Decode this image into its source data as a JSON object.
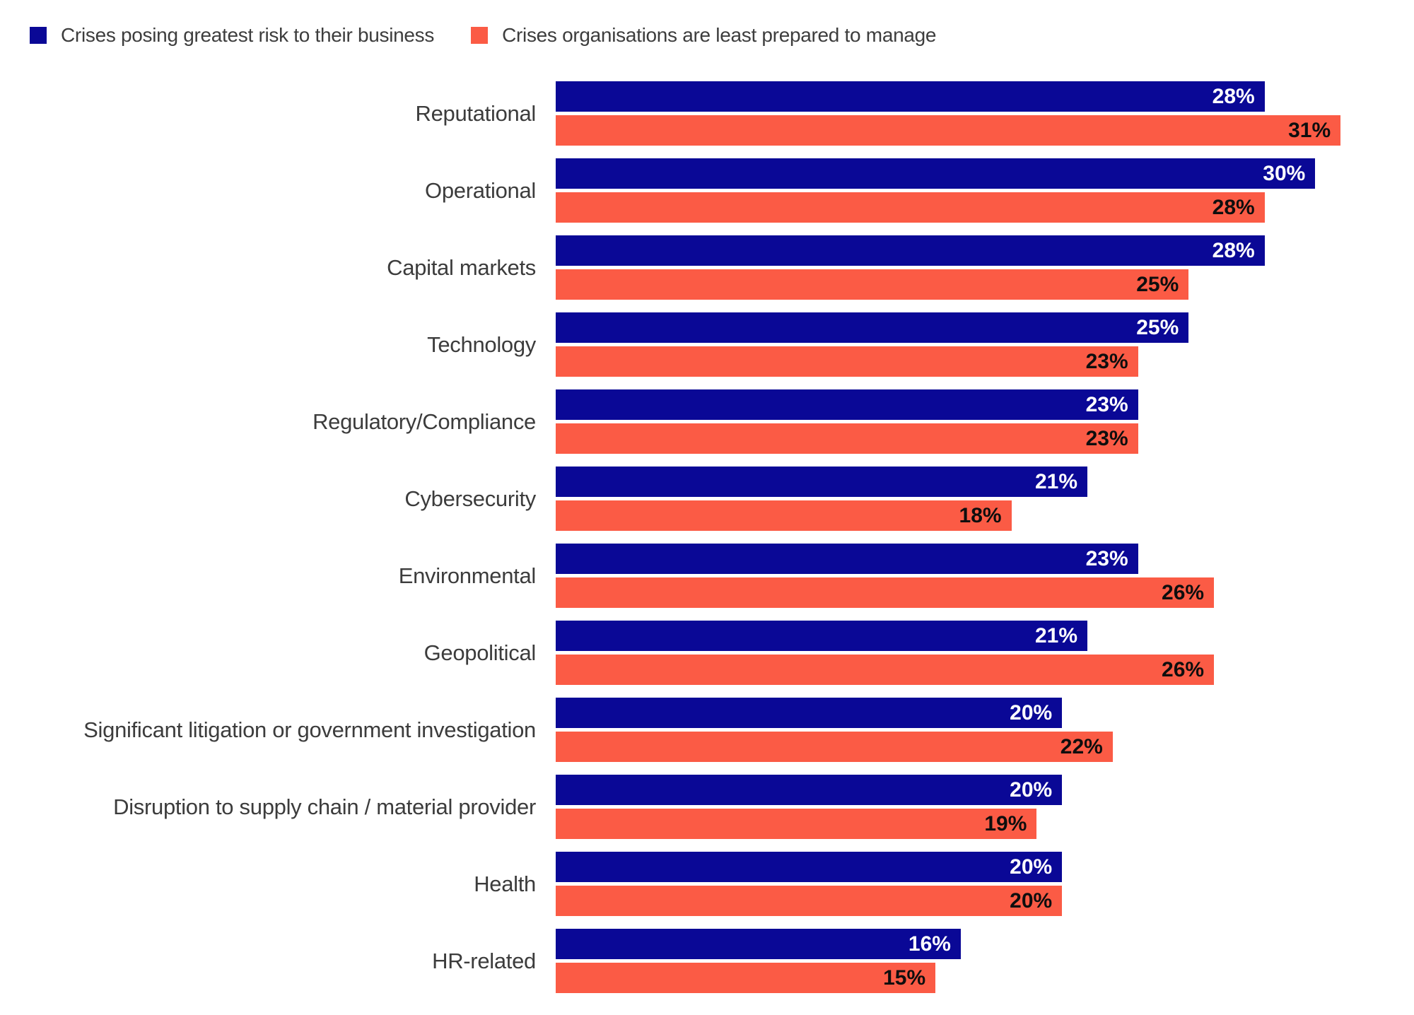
{
  "legend": {
    "items": [
      {
        "id": "risk",
        "label": "Crises posing greatest risk to their business",
        "color": "#0A0896"
      },
      {
        "id": "prepared",
        "label": "Crises organisations are least prepared to manage",
        "color": "#FB5B45"
      }
    ]
  },
  "chart_data": {
    "type": "bar",
    "orientation": "horizontal",
    "title": "",
    "xlabel": "",
    "ylabel": "",
    "grid": false,
    "legend_position": "top-left",
    "value_labels": "inside-end",
    "value_suffix": "%",
    "xlim": [
      0,
      33.9
    ],
    "categories": [
      "Reputational",
      "Operational",
      "Capital markets",
      "Technology",
      "Regulatory/Compliance",
      "Cybersecurity",
      "Environmental",
      "Geopolitical",
      "Significant litigation or government investigation",
      "Disruption to supply chain / material provider",
      "Health",
      "HR-related"
    ],
    "series": [
      {
        "name": "Crises posing greatest risk to their business",
        "color": "#0A0896",
        "label_color": "#FFFFFF",
        "values": [
          28,
          30,
          28,
          25,
          23,
          21,
          23,
          21,
          20,
          20,
          20,
          16
        ]
      },
      {
        "name": "Crises organisations are least prepared to manage",
        "color": "#FB5B45",
        "label_color": "#0E0E0E",
        "values": [
          31,
          28,
          25,
          23,
          23,
          18,
          26,
          26,
          22,
          19,
          20,
          15
        ]
      }
    ]
  }
}
